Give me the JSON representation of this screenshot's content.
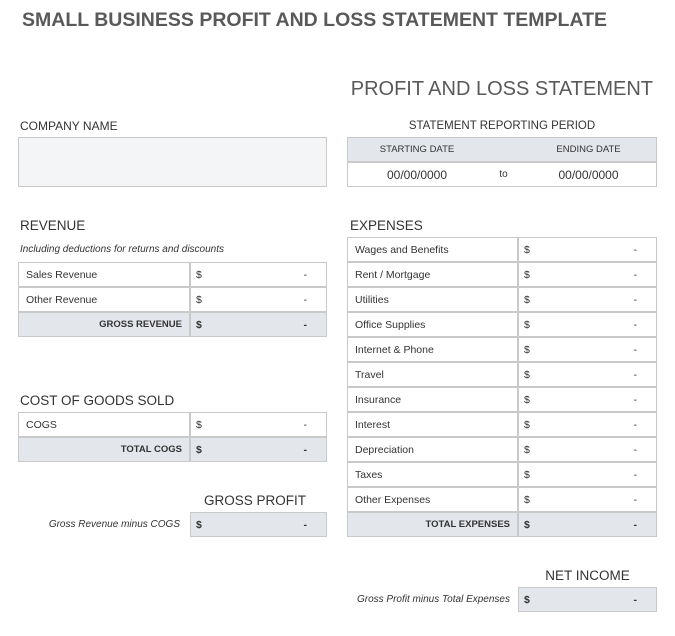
{
  "title": "SMALL BUSINESS PROFIT AND LOSS STATEMENT TEMPLATE",
  "statement_title": "PROFIT AND LOSS STATEMENT",
  "company": {
    "label": "COMPANY NAME"
  },
  "period": {
    "label": "STATEMENT REPORTING PERIOD",
    "start_label": "STARTING DATE",
    "end_label": "ENDING DATE",
    "start": "00/00/0000",
    "to": "to",
    "end": "00/00/0000"
  },
  "revenue": {
    "heading": "REVENUE",
    "note": "Including deductions for returns and discounts",
    "rows": [
      [
        "Sales Revenue",
        "$",
        "-"
      ],
      [
        "Other Revenue",
        "$",
        "-"
      ]
    ],
    "total": [
      "GROSS REVENUE",
      "$",
      "-"
    ]
  },
  "cogs": {
    "heading": "COST OF GOODS SOLD",
    "rows": [
      [
        "COGS",
        "$",
        "-"
      ]
    ],
    "total": [
      "TOTAL COGS",
      "$",
      "-"
    ]
  },
  "gross_profit": {
    "heading": "GROSS PROFIT",
    "note": "Gross Revenue minus COGS",
    "value": [
      "$",
      "-"
    ]
  },
  "expenses": {
    "heading": "EXPENSES",
    "rows": [
      [
        "Wages and Benefits",
        "$",
        "-"
      ],
      [
        "Rent / Mortgage",
        "$",
        "-"
      ],
      [
        "Utilities",
        "$",
        "-"
      ],
      [
        "Office Supplies",
        "$",
        "-"
      ],
      [
        "Internet & Phone",
        "$",
        "-"
      ],
      [
        "Travel",
        "$",
        "-"
      ],
      [
        "Insurance",
        "$",
        "-"
      ],
      [
        "Interest",
        "$",
        "-"
      ],
      [
        "Depreciation",
        "$",
        "-"
      ],
      [
        "Taxes",
        "$",
        "-"
      ],
      [
        "Other Expenses",
        "$",
        "-"
      ]
    ],
    "total": [
      "TOTAL EXPENSES",
      "$",
      "-"
    ]
  },
  "net_income": {
    "heading": "NET INCOME",
    "note": "Gross Profit minus Total Expenses",
    "value": [
      "$",
      "-"
    ]
  }
}
